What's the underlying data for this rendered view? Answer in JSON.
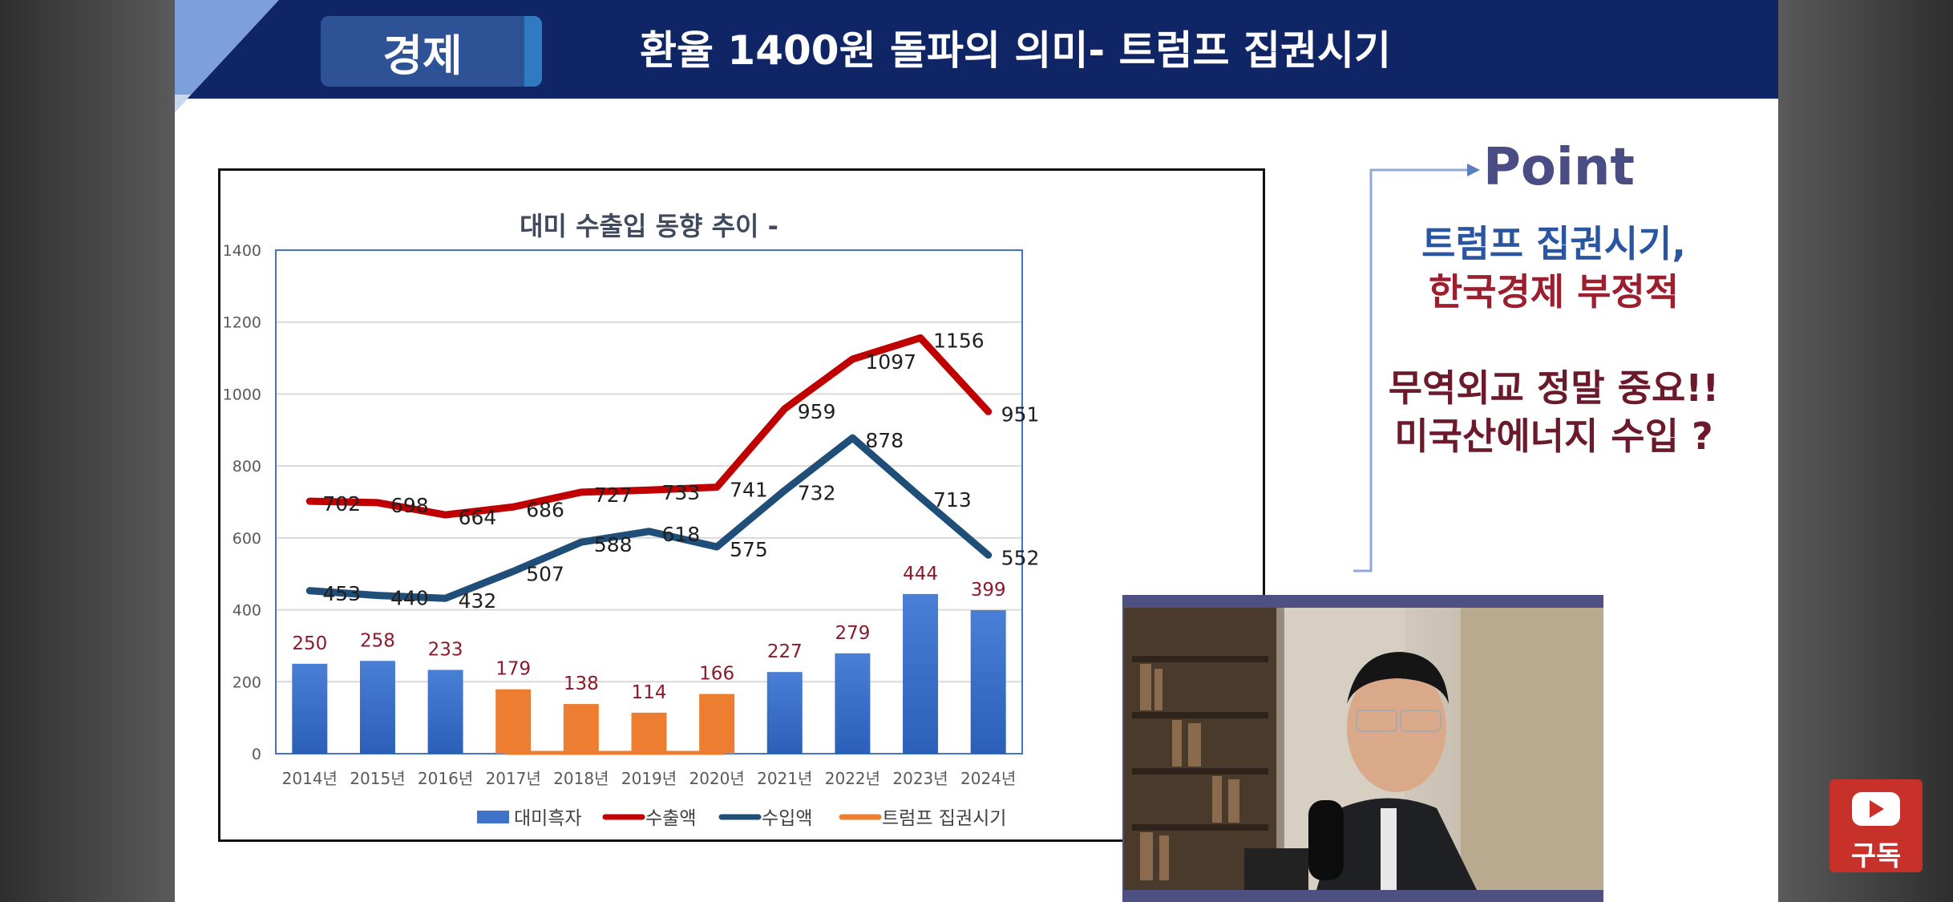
{
  "header": {
    "category": "경제",
    "title": "환율 1400원 돌파의 의미- 트럼프 집권시기"
  },
  "point": {
    "label": "Point",
    "line1": "트럼프 집권시기,",
    "line2": "한국경제 부정적",
    "line3": "무역외교 정말 중요!!",
    "line4": "미국산에너지 수입 ?"
  },
  "subscribe": {
    "label": "구독",
    "icon": "youtube-play-icon"
  },
  "colors": {
    "header": "#0f2565",
    "surplus_bar": "#3f72c8",
    "trump_bar": "#ed7d31",
    "export_line": "#c00000",
    "import_line": "#1f4e79",
    "bar_label": "#8b1a2a"
  },
  "chart_data": {
    "type": "bar",
    "title": "대미 수출입 동향 추이 -",
    "categories": [
      "2014년",
      "2015년",
      "2016년",
      "2017년",
      "2018년",
      "2019년",
      "2020년",
      "2021년",
      "2022년",
      "2023년",
      "2024년"
    ],
    "ylim": [
      0,
      1400
    ],
    "yticks": [
      0,
      200,
      400,
      600,
      800,
      1000,
      1200,
      1400
    ],
    "grid": true,
    "legend_position": "bottom",
    "trump_years": [
      "2017년",
      "2018년",
      "2019년",
      "2020년"
    ],
    "series": [
      {
        "name": "대미흑자",
        "kind": "bar",
        "values": [
          250,
          258,
          233,
          179,
          138,
          114,
          166,
          227,
          279,
          444,
          399
        ]
      },
      {
        "name": "수출액",
        "kind": "line",
        "values": [
          702,
          698,
          664,
          686,
          727,
          733,
          741,
          959,
          1097,
          1156,
          951
        ]
      },
      {
        "name": "수입액",
        "kind": "line",
        "values": [
          453,
          440,
          432,
          507,
          588,
          618,
          575,
          732,
          878,
          713,
          552
        ]
      },
      {
        "name": "트럼프 집권시기",
        "kind": "bar-highlight",
        "values": [
          null,
          null,
          null,
          179,
          138,
          114,
          166,
          null,
          null,
          null,
          null
        ]
      }
    ]
  }
}
